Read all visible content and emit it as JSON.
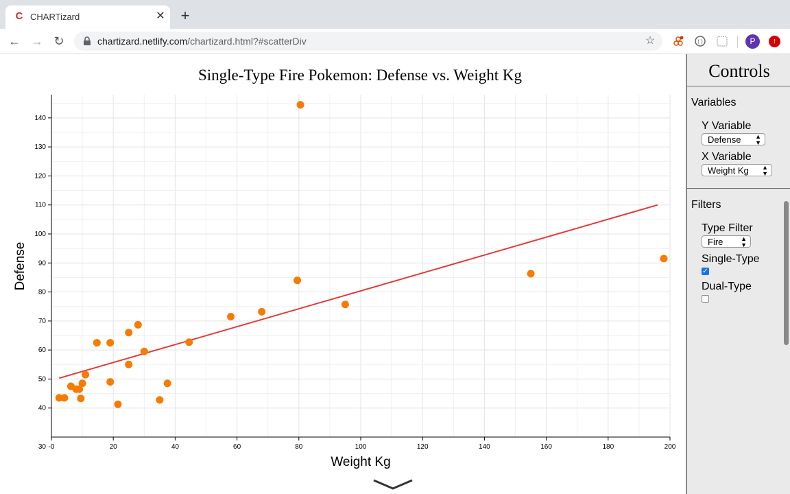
{
  "browser": {
    "tab_title": "CHARTizard",
    "tab_favicon": "C",
    "url_host": "chartizard.netlify.com",
    "url_path": "/chartizard.html?#scatterDiv",
    "profile_initial": "P",
    "icons": [
      "back-arrow-icon",
      "forward-arrow-icon",
      "reload-icon",
      "lock-icon",
      "star-icon",
      "extension-icon",
      "extension-icon",
      "extension-icon",
      "profile-avatar",
      "update-icon"
    ]
  },
  "controls": {
    "title": "Controls",
    "variables_heading": "Variables",
    "y_label": "Y Variable",
    "y_value": "Defense",
    "x_label": "X Variable",
    "x_value": "Weight Kg",
    "filters_heading": "Filters",
    "type_filter_label": "Type Filter",
    "type_filter_value": "Fire",
    "single_type_label": "Single-Type",
    "single_type_checked": true,
    "dual_type_label": "Dual-Type",
    "dual_type_checked": false
  },
  "chart_data": {
    "type": "scatter",
    "title": "Single-Type Fire Pokemon: Defense vs. Weight Kg",
    "xlabel": "Weight Kg",
    "ylabel": "Defense",
    "xlim": [
      0,
      200
    ],
    "ylim": [
      30,
      148
    ],
    "xticks": [
      0,
      20,
      40,
      60,
      80,
      100,
      120,
      140,
      160,
      180,
      200
    ],
    "yticks": [
      40,
      50,
      60,
      70,
      80,
      90,
      100,
      110,
      120,
      130,
      140
    ],
    "x_tick_labels": [
      "-0",
      "20",
      "40",
      "60",
      "80",
      "100",
      "120",
      "140",
      "160",
      "180",
      "200"
    ],
    "y_tick_labels": [
      "40",
      "50",
      "60",
      "70",
      "80",
      "90",
      "100",
      "110",
      "120",
      "130",
      "140"
    ],
    "corner_label": "30",
    "grid": true,
    "point_color": "#f57c00",
    "trend_color": "#e53935",
    "points": [
      {
        "x": 2.5,
        "y": 43.5
      },
      {
        "x": 4.2,
        "y": 43.5
      },
      {
        "x": 6.3,
        "y": 47.5
      },
      {
        "x": 8,
        "y": 46.5
      },
      {
        "x": 9,
        "y": 46.5
      },
      {
        "x": 9.5,
        "y": 43.3
      },
      {
        "x": 10,
        "y": 48.5
      },
      {
        "x": 11,
        "y": 51.5
      },
      {
        "x": 14.7,
        "y": 62.5
      },
      {
        "x": 19,
        "y": 62.5
      },
      {
        "x": 19,
        "y": 49
      },
      {
        "x": 21.5,
        "y": 41.3
      },
      {
        "x": 25,
        "y": 66
      },
      {
        "x": 25,
        "y": 55
      },
      {
        "x": 28,
        "y": 68.7
      },
      {
        "x": 30,
        "y": 59.5
      },
      {
        "x": 35,
        "y": 42.8
      },
      {
        "x": 37.5,
        "y": 48.5
      },
      {
        "x": 44.5,
        "y": 62.7
      },
      {
        "x": 58,
        "y": 71.5
      },
      {
        "x": 68,
        "y": 73.2
      },
      {
        "x": 79.5,
        "y": 84
      },
      {
        "x": 80.5,
        "y": 144.5
      },
      {
        "x": 95,
        "y": 75.7
      },
      {
        "x": 155,
        "y": 86.3
      },
      {
        "x": 198,
        "y": 91.5
      }
    ],
    "trendline": [
      {
        "x": 2.5,
        "y": 50.3
      },
      {
        "x": 196,
        "y": 110
      }
    ]
  }
}
